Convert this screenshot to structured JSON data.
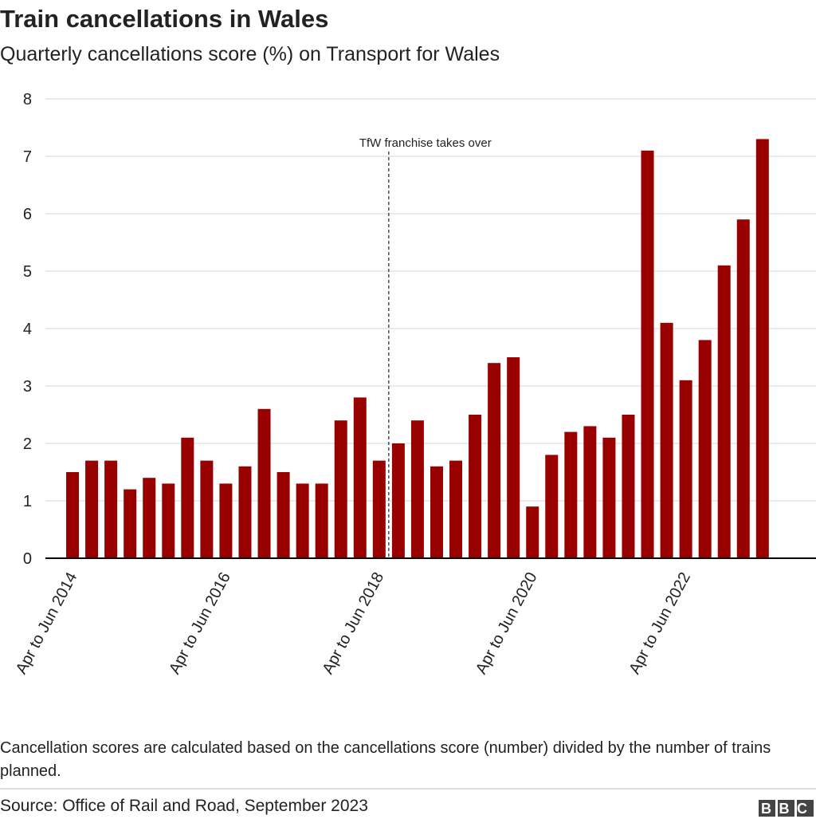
{
  "chart_data": {
    "type": "bar",
    "title": "Train cancellations in Wales",
    "subtitle": "Quarterly cancellations score (%) on Transport for Wales",
    "categories": [
      "Apr to Jun 2014",
      null,
      null,
      null,
      null,
      null,
      null,
      null,
      "Apr to Jun 2016",
      null,
      null,
      null,
      null,
      null,
      null,
      null,
      "Apr to Jun 2018",
      null,
      null,
      null,
      null,
      null,
      null,
      null,
      "Apr to Jun 2020",
      null,
      null,
      null,
      null,
      null,
      null,
      null,
      "Apr to Jun 2022",
      null,
      null,
      null,
      null
    ],
    "values": [
      1.5,
      1.7,
      1.7,
      1.2,
      1.4,
      1.3,
      2.1,
      1.7,
      1.3,
      1.6,
      2.6,
      1.5,
      1.3,
      1.3,
      2.4,
      2.8,
      1.7,
      2.0,
      2.4,
      1.6,
      1.7,
      2.5,
      3.4,
      3.5,
      0.9,
      1.8,
      2.2,
      2.3,
      2.1,
      2.5,
      7.1,
      4.1,
      3.1,
      3.8,
      5.1,
      5.9,
      7.3
    ],
    "color": "#990000",
    "ylim": [
      0,
      8
    ],
    "yticks": [
      0,
      1,
      2,
      3,
      4,
      5,
      6,
      7,
      8
    ],
    "grid": true,
    "annotation": "TfW franchise takes over",
    "note": "Cancellation scores are calculated based on the cancellations score (number) divided by the number of trains planned.",
    "source": "Source: Office of Rail and Road, September 2023",
    "logo": "BBC"
  }
}
